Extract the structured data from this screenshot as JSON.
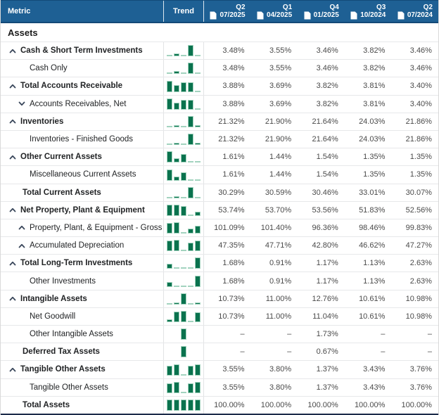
{
  "table": {
    "header": {
      "metric_label": "Metric",
      "trend_label": "Trend",
      "quarters": [
        {
          "quarter": "Q2",
          "date": "07/2025"
        },
        {
          "quarter": "Q1",
          "date": "04/2025"
        },
        {
          "quarter": "Q4",
          "date": "01/2025"
        },
        {
          "quarter": "Q3",
          "date": "10/2024"
        },
        {
          "quarter": "Q2",
          "date": "07/2024"
        }
      ]
    },
    "section_title": "Assets",
    "rows": [
      {
        "label": "Cash & Short Term Investments",
        "bold": true,
        "level": "parent",
        "chevron": "up",
        "values": [
          "3.48%",
          "3.55%",
          "3.46%",
          "3.82%",
          "3.46%"
        ]
      },
      {
        "label": "Cash Only",
        "bold": false,
        "level": "child",
        "chevron": null,
        "values": [
          "3.48%",
          "3.55%",
          "3.46%",
          "3.82%",
          "3.46%"
        ]
      },
      {
        "label": "Total Accounts Receivable",
        "bold": true,
        "level": "parent",
        "chevron": "up",
        "values": [
          "3.88%",
          "3.69%",
          "3.82%",
          "3.81%",
          "3.40%"
        ]
      },
      {
        "label": "Accounts Receivables, Net",
        "bold": false,
        "level": "child",
        "chevron": "down",
        "values": [
          "3.88%",
          "3.69%",
          "3.82%",
          "3.81%",
          "3.40%"
        ]
      },
      {
        "label": "Inventories",
        "bold": true,
        "level": "parent",
        "chevron": "up",
        "values": [
          "21.32%",
          "21.90%",
          "21.64%",
          "24.03%",
          "21.86%"
        ]
      },
      {
        "label": "Inventories - Finished Goods",
        "bold": false,
        "level": "child",
        "chevron": null,
        "values": [
          "21.32%",
          "21.90%",
          "21.64%",
          "24.03%",
          "21.86%"
        ]
      },
      {
        "label": "Other Current Assets",
        "bold": true,
        "level": "parent",
        "chevron": "up",
        "values": [
          "1.61%",
          "1.44%",
          "1.54%",
          "1.35%",
          "1.35%"
        ]
      },
      {
        "label": "Miscellaneous Current Assets",
        "bold": false,
        "level": "child",
        "chevron": null,
        "values": [
          "1.61%",
          "1.44%",
          "1.54%",
          "1.35%",
          "1.35%"
        ]
      },
      {
        "label": "Total Current Assets",
        "bold": true,
        "level": "parent",
        "chevron": null,
        "values": [
          "30.29%",
          "30.59%",
          "30.46%",
          "33.01%",
          "30.07%"
        ]
      },
      {
        "label": "Net Property, Plant & Equipment",
        "bold": true,
        "level": "parent",
        "chevron": "up",
        "values": [
          "53.74%",
          "53.70%",
          "53.56%",
          "51.83%",
          "52.56%"
        ]
      },
      {
        "label": "Property, Plant, & Equipment - Gross",
        "bold": false,
        "level": "child",
        "chevron": "up",
        "values": [
          "101.09%",
          "101.40%",
          "96.36%",
          "98.46%",
          "99.83%"
        ]
      },
      {
        "label": "Accumulated Depreciation",
        "bold": false,
        "level": "child",
        "chevron": "up",
        "values": [
          "47.35%",
          "47.71%",
          "42.80%",
          "46.62%",
          "47.27%"
        ]
      },
      {
        "label": "Total Long-Term Investments",
        "bold": true,
        "level": "parent",
        "chevron": "up",
        "values": [
          "1.68%",
          "0.91%",
          "1.17%",
          "1.13%",
          "2.63%"
        ]
      },
      {
        "label": "Other Investments",
        "bold": false,
        "level": "child",
        "chevron": null,
        "values": [
          "1.68%",
          "0.91%",
          "1.17%",
          "1.13%",
          "2.63%"
        ]
      },
      {
        "label": "Intangible Assets",
        "bold": true,
        "level": "parent",
        "chevron": "up",
        "values": [
          "10.73%",
          "11.00%",
          "12.76%",
          "10.61%",
          "10.98%"
        ]
      },
      {
        "label": "Net Goodwill",
        "bold": false,
        "level": "child",
        "chevron": null,
        "values": [
          "10.73%",
          "11.00%",
          "11.04%",
          "10.61%",
          "10.98%"
        ]
      },
      {
        "label": "Other Intangible Assets",
        "bold": false,
        "level": "child",
        "chevron": null,
        "values": [
          "–",
          "–",
          "1.73%",
          "–",
          "–"
        ]
      },
      {
        "label": "Deferred Tax Assets",
        "bold": true,
        "level": "parent",
        "chevron": null,
        "values": [
          "–",
          "–",
          "0.67%",
          "–",
          "–"
        ]
      },
      {
        "label": "Tangible Other Assets",
        "bold": true,
        "level": "parent",
        "chevron": "up",
        "values": [
          "3.55%",
          "3.80%",
          "1.37%",
          "3.43%",
          "3.76%"
        ]
      },
      {
        "label": "Tangible Other Assets",
        "bold": false,
        "level": "child",
        "chevron": null,
        "values": [
          "3.55%",
          "3.80%",
          "1.37%",
          "3.43%",
          "3.76%"
        ]
      },
      {
        "label": "Total Assets",
        "bold": true,
        "level": "parent",
        "chevron": null,
        "values": [
          "100.00%",
          "100.00%",
          "100.00%",
          "100.00%",
          "100.00%"
        ]
      }
    ],
    "colors": {
      "header_bg": "#1e6094",
      "header_border": "#134a78",
      "sparkline_green": "#0a724e",
      "sparkline_green_light": "#a3d3bf"
    }
  }
}
